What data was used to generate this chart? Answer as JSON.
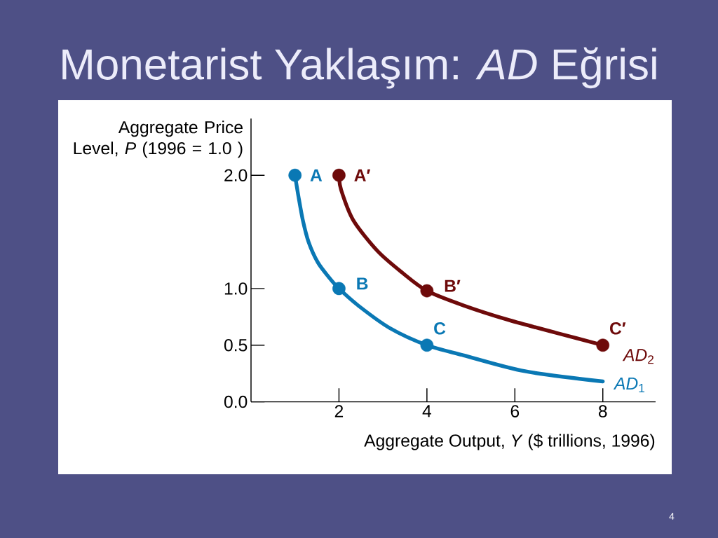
{
  "chart_data": {
    "type": "line",
    "title": "Monetarist Yaklaşım: *AD* Eğrisi",
    "xlabel": "Aggregate Output, *Y* ($ trillions, 1996)",
    "ylabel": "Aggregate Price Level, *P* (1996 = 1.0 )",
    "xlim": [
      0,
      9.2
    ],
    "ylim": [
      0,
      2.5
    ],
    "xticks": [
      2,
      4,
      6,
      8
    ],
    "yticks": [
      {
        "value": 0,
        "label": "0.0"
      },
      0.5,
      {
        "value": 1,
        "label": "1.0"
      },
      {
        "value": 2,
        "label": "2.0"
      }
    ],
    "series": [
      {
        "name": "*AD*$_{1}$",
        "color": "#0a78b4",
        "marker": "none",
        "x": [
          1,
          1.08,
          1.18,
          1.31,
          1.52,
          1.77,
          2,
          2.47,
          3.16,
          4,
          4.84,
          6.23,
          8
        ],
        "values": [
          2,
          1.81,
          1.6,
          1.41,
          1.23,
          1.1,
          1,
          0.84,
          0.65,
          0.5,
          0.41,
          0.27,
          0.18
        ]
      },
      {
        "name": "*AD*$_{2}$",
        "color": "#6e0a0a",
        "marker": "none",
        "x": [
          2,
          2.05,
          2.33,
          2.88,
          3.44,
          4,
          4.84,
          5.88,
          6.93,
          8
        ],
        "values": [
          2,
          1.87,
          1.6,
          1.33,
          1.14,
          0.98,
          0.85,
          0.72,
          0.61,
          0.5
        ]
      },
      {
        "type": "scatter",
        "color": "#0a78b4",
        "marker": "circle",
        "x": [
          1,
          2,
          4
        ],
        "values": [
          2,
          1,
          0.5
        ]
      },
      {
        "type": "scatter",
        "color": "#6e0a0a",
        "marker": "circle",
        "x": [
          2,
          4,
          8
        ],
        "values": [
          2,
          0.98,
          0.5
        ]
      }
    ],
    "annotations": [
      {
        "text": "A",
        "x": 1,
        "y": 2
      },
      {
        "text": "B",
        "x": 2,
        "y": 1
      },
      {
        "text": "C",
        "x": 4,
        "y": 0.5
      },
      {
        "text": "A′",
        "x": 2,
        "y": 2
      },
      {
        "text": "B′",
        "x": 4,
        "y": 0.98
      },
      {
        "text": "C′",
        "x": 8,
        "y": 0.5
      },
      "4"
    ]
  }
}
